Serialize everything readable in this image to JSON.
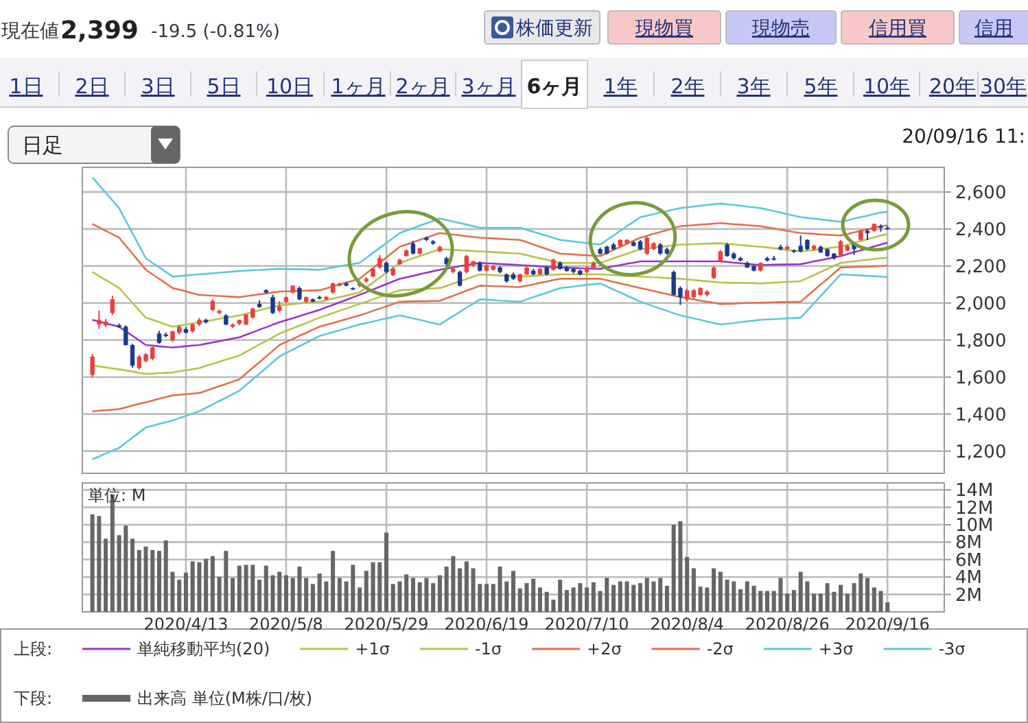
{
  "chart_data": [
    {
      "type": "other",
      "annotations": [
        "現在値",
        "2,399",
        "-19.5 (-0.81%)",
        "株価更新",
        "現物買",
        "現物売",
        "信用買",
        "信用",
        "1日",
        "2日",
        "3日",
        "5日",
        "10日",
        "1ヶ月",
        "2ヶ月",
        "3ヶ月",
        "6ヶ月",
        "1年",
        "2年",
        "3年",
        "5年",
        "10年",
        "20年",
        "30年",
        "日足",
        "20/09/16 11:"
      ]
    },
    {
      "type": "candlestick",
      "ylim": [
        1080,
        2733
      ],
      "tick_labels": "y",
      "grid": true,
      "legend": "bottom",
      "annotations": [
        "上段:"
      ],
      "yticks": [
        {
          "value": 1200,
          "label": "1,200"
        },
        {
          "value": 1400,
          "label": "1,400"
        },
        {
          "value": 1600,
          "label": "1,600"
        },
        {
          "value": 1800,
          "label": "1,800"
        },
        {
          "value": 2000,
          "label": "2,000"
        },
        {
          "value": 2200,
          "label": "2,200"
        },
        {
          "value": 2400,
          "label": "2,400"
        },
        {
          "value": 2600,
          "label": "2,600"
        }
      ],
      "categories": [
        null,
        null,
        null,
        null,
        null,
        null,
        null,
        null,
        null,
        null,
        null,
        null,
        null,
        null,
        "2020/4/13",
        null,
        null,
        null,
        null,
        null,
        null,
        null,
        null,
        null,
        null,
        null,
        null,
        null,
        null,
        "2020/5/8",
        null,
        null,
        null,
        null,
        null,
        null,
        null,
        null,
        null,
        null,
        null,
        null,
        null,
        null,
        "2020/5/29",
        null,
        null,
        null,
        null,
        null,
        null,
        null,
        null,
        null,
        null,
        null,
        null,
        null,
        null,
        "2020/6/19",
        null,
        null,
        null,
        null,
        null,
        null,
        null,
        null,
        null,
        null,
        null,
        null,
        null,
        null,
        "2020/7/10",
        null,
        null,
        null,
        null,
        null,
        null,
        null,
        null,
        null,
        null,
        null,
        null,
        null,
        null,
        "2020/8/4",
        null,
        null,
        null,
        null,
        null,
        null,
        null,
        null,
        null,
        null,
        null,
        null,
        null,
        null,
        "2020/8/26",
        null,
        null,
        null,
        null,
        null,
        null,
        null,
        null,
        null,
        null,
        null,
        null,
        null,
        null,
        "2020/9/16"
      ],
      "ohlc": [
        [
          1612,
          1725,
          1600,
          1711
        ],
        [
          1884,
          1960,
          1860,
          1909
        ],
        [
          1880,
          1915,
          1870,
          1900
        ],
        [
          1946,
          2040,
          1935,
          2020
        ],
        [
          1880,
          1890,
          1865,
          1870
        ],
        [
          1872,
          1880,
          1770,
          1773
        ],
        [
          1773,
          1780,
          1650,
          1662
        ],
        [
          1649,
          1720,
          1640,
          1711
        ],
        [
          1686,
          1730,
          1680,
          1723
        ],
        [
          1699,
          1765,
          1690,
          1760
        ],
        [
          1835,
          1850,
          1780,
          1785
        ],
        [
          1830,
          1840,
          1815,
          1822
        ],
        [
          1798,
          1850,
          1790,
          1847
        ],
        [
          1840,
          1880,
          1830,
          1872
        ],
        [
          1859,
          1870,
          1835,
          1840
        ],
        [
          1847,
          1890,
          1840,
          1884
        ],
        [
          1884,
          1920,
          1875,
          1909
        ],
        [
          1909,
          1915,
          1890,
          1896
        ],
        [
          1963,
          2020,
          1955,
          2012
        ],
        [
          1946,
          1965,
          1940,
          1958
        ],
        [
          1933,
          1940,
          1880,
          1884
        ],
        [
          1872,
          1890,
          1865,
          1884
        ],
        [
          1889,
          1910,
          1880,
          1909
        ],
        [
          1884,
          1940,
          1880,
          1938
        ],
        [
          1921,
          1975,
          1915,
          1970
        ],
        [
          1995,
          2015,
          1975,
          1978
        ],
        [
          2069,
          2075,
          2050,
          2057
        ],
        [
          2032,
          2045,
          1940,
          1946
        ],
        [
          1958,
          2010,
          1950,
          1983
        ],
        [
          2007,
          2035,
          2000,
          2032
        ],
        [
          2057,
          2095,
          2050,
          2094
        ],
        [
          2081,
          2090,
          2015,
          2020
        ],
        [
          2007,
          2035,
          2000,
          2032
        ],
        [
          2020,
          2025,
          2005,
          2007
        ],
        [
          2032,
          2040,
          2020,
          2025
        ],
        [
          2020,
          2040,
          2015,
          2032
        ],
        [
          2057,
          2110,
          2050,
          2106
        ],
        [
          2094,
          2110,
          2090,
          2106
        ],
        [
          2106,
          2115,
          2090,
          2094
        ],
        [
          2081,
          2085,
          2070,
          2076
        ],
        [
          2094,
          2110,
          2085,
          2106
        ],
        [
          2118,
          2140,
          2110,
          2131
        ],
        [
          2143,
          2190,
          2140,
          2185
        ],
        [
          2192,
          2260,
          2185,
          2242
        ],
        [
          2217,
          2225,
          2160,
          2168
        ],
        [
          2151,
          2195,
          2145,
          2185
        ],
        [
          2210,
          2240,
          2205,
          2234
        ],
        [
          2254,
          2290,
          2250,
          2284
        ],
        [
          2321,
          2335,
          2262,
          2267
        ],
        [
          2267,
          2300,
          2260,
          2296
        ],
        [
          2353,
          2360,
          2335,
          2341
        ],
        [
          2333,
          2340,
          2315,
          2321
        ],
        [
          2279,
          2310,
          2275,
          2304
        ],
        [
          2242,
          2250,
          2200,
          2210
        ],
        [
          2168,
          2190,
          2160,
          2185
        ],
        [
          2168,
          2175,
          2090,
          2094
        ],
        [
          2168,
          2260,
          2160,
          2254
        ],
        [
          2205,
          2230,
          2195,
          2225
        ],
        [
          2217,
          2225,
          2170,
          2175
        ],
        [
          2175,
          2210,
          2170,
          2205
        ],
        [
          2180,
          2205,
          2175,
          2200
        ],
        [
          2192,
          2200,
          2160,
          2168
        ],
        [
          2155,
          2160,
          2110,
          2118
        ],
        [
          2155,
          2165,
          2125,
          2131
        ],
        [
          2118,
          2160,
          2110,
          2155
        ],
        [
          2155,
          2200,
          2150,
          2192
        ],
        [
          2175,
          2185,
          2150,
          2155
        ],
        [
          2155,
          2190,
          2150,
          2185
        ],
        [
          2192,
          2200,
          2150,
          2155
        ],
        [
          2180,
          2240,
          2175,
          2234
        ],
        [
          2217,
          2225,
          2180,
          2185
        ],
        [
          2192,
          2200,
          2170,
          2173
        ],
        [
          2185,
          2190,
          2160,
          2168
        ],
        [
          2175,
          2180,
          2150,
          2155
        ],
        [
          2168,
          2200,
          2160,
          2192
        ],
        [
          2192,
          2225,
          2185,
          2217
        ],
        [
          2291,
          2300,
          2262,
          2267
        ],
        [
          2304,
          2310,
          2262,
          2267
        ],
        [
          2316,
          2325,
          2285,
          2291
        ],
        [
          2309,
          2345,
          2300,
          2341
        ],
        [
          2323,
          2345,
          2318,
          2341
        ],
        [
          2328,
          2335,
          2305,
          2309
        ],
        [
          2333,
          2340,
          2285,
          2291
        ],
        [
          2267,
          2360,
          2260,
          2353
        ],
        [
          2291,
          2330,
          2285,
          2323
        ],
        [
          2316,
          2325,
          2260,
          2267
        ],
        [
          2291,
          2300,
          2262,
          2267
        ],
        [
          2168,
          2175,
          2040,
          2044
        ],
        [
          2081,
          2090,
          1990,
          2032
        ],
        [
          2020,
          2075,
          2010,
          2069
        ],
        [
          2032,
          2075,
          2025,
          2069
        ],
        [
          2044,
          2085,
          2040,
          2081
        ],
        [
          2044,
          2070,
          2035,
          2062
        ],
        [
          2136,
          2200,
          2130,
          2192
        ],
        [
          2225,
          2285,
          2220,
          2279
        ],
        [
          2316,
          2325,
          2250,
          2254
        ],
        [
          2267,
          2275,
          2235,
          2242
        ],
        [
          2242,
          2250,
          2225,
          2230
        ],
        [
          2217,
          2225,
          2190,
          2192
        ],
        [
          2200,
          2205,
          2170,
          2175
        ],
        [
          2175,
          2220,
          2170,
          2217
        ],
        [
          2242,
          2250,
          2225,
          2230
        ],
        [
          2242,
          2255,
          2230,
          2234
        ],
        [
          2304,
          2315,
          2285,
          2291
        ],
        [
          2291,
          2310,
          2285,
          2304
        ],
        [
          2284,
          2290,
          2270,
          2279
        ],
        [
          2309,
          2365,
          2275,
          2279
        ],
        [
          2341,
          2345,
          2285,
          2291
        ],
        [
          2291,
          2315,
          2285,
          2309
        ],
        [
          2304,
          2310,
          2270,
          2274
        ],
        [
          2291,
          2295,
          2250,
          2254
        ],
        [
          2267,
          2270,
          2235,
          2242
        ],
        [
          2259,
          2340,
          2250,
          2333
        ],
        [
          2284,
          2315,
          2280,
          2309
        ],
        [
          2323,
          2330,
          2260,
          2291
        ],
        [
          2341,
          2395,
          2335,
          2390
        ],
        [
          2390,
          2400,
          2340,
          2378
        ],
        [
          2390,
          2430,
          2385,
          2427
        ],
        [
          2415,
          2425,
          2385,
          2407
        ],
        [
          2407,
          2415,
          2395,
          2399
        ]
      ],
      "colors": [
        "#e8413c",
        "#e8413c",
        "#e8413c",
        "#e8413c",
        "#1c3a8c",
        "#1c3a8c",
        "#1c3a8c",
        "#e8413c",
        "#e8413c",
        "#e8413c",
        "#1c3a8c",
        "#1c3a8c",
        "#e8413c",
        "#e8413c",
        "#1c3a8c",
        "#e8413c",
        "#e8413c",
        "#1c3a8c",
        "#e8413c",
        "#e8413c",
        "#1c3a8c",
        "#e8413c",
        "#e8413c",
        "#e8413c",
        "#e8413c",
        "#1c3a8c",
        "#1c3a8c",
        "#1c3a8c",
        "#e8413c",
        "#e8413c",
        "#e8413c",
        "#1c3a8c",
        "#e8413c",
        "#1c3a8c",
        "#1c3a8c",
        "#e8413c",
        "#e8413c",
        "#e8413c",
        "#1c3a8c",
        "#1c3a8c",
        "#e8413c",
        "#e8413c",
        "#e8413c",
        "#e8413c",
        "#1c3a8c",
        "#e8413c",
        "#e8413c",
        "#e8413c",
        "#1c3a8c",
        "#e8413c",
        "#1c3a8c",
        "#1c3a8c",
        "#e8413c",
        "#1c3a8c",
        "#e8413c",
        "#1c3a8c",
        "#e8413c",
        "#e8413c",
        "#1c3a8c",
        "#e8413c",
        "#e8413c",
        "#1c3a8c",
        "#1c3a8c",
        "#1c3a8c",
        "#e8413c",
        "#e8413c",
        "#1c3a8c",
        "#e8413c",
        "#1c3a8c",
        "#e8413c",
        "#1c3a8c",
        "#1c3a8c",
        "#1c3a8c",
        "#1c3a8c",
        "#e8413c",
        "#e8413c",
        "#1c3a8c",
        "#1c3a8c",
        "#1c3a8c",
        "#e8413c",
        "#e8413c",
        "#1c3a8c",
        "#1c3a8c",
        "#e8413c",
        "#e8413c",
        "#1c3a8c",
        "#1c3a8c",
        "#1c3a8c",
        "#1c3a8c",
        "#e8413c",
        "#e8413c",
        "#e8413c",
        "#e8413c",
        "#e8413c",
        "#e8413c",
        "#1c3a8c",
        "#1c3a8c",
        "#1c3a8c",
        "#1c3a8c",
        "#1c3a8c",
        "#e8413c",
        "#1c3a8c",
        "#1c3a8c",
        "#1c3a8c",
        "#e8413c",
        "#1c3a8c",
        "#1c3a8c",
        "#1c3a8c",
        "#e8413c",
        "#1c3a8c",
        "#1c3a8c",
        "#1c3a8c",
        "#e8413c",
        "#e8413c",
        "#1c3a8c",
        "#e8413c",
        "#1c3a8c",
        "#e8413c",
        "#1c3a8c",
        "#1c3a8c"
      ],
      "series": [
        {
          "type": "line",
          "name": "単純移動平均(20)",
          "color": "#9a35c8",
          "values": [
            1909,
            1900,
            1890,
            1881,
            1872,
            1847,
            1823,
            1798,
            1773,
            1770,
            1766,
            1763,
            1760,
            1763,
            1767,
            1770,
            1773,
            1780,
            1787,
            1794,
            1801,
            1808,
            1815,
            1829,
            1842,
            1856,
            1869,
            1883,
            1896,
            1907,
            1918,
            1930,
            1941,
            1952,
            1963,
            1977,
            1990,
            2004,
            2017,
            2031,
            2044,
            2059,
            2073,
            2088,
            2102,
            2117,
            2131,
            2139,
            2147,
            2156,
            2164,
            2172,
            2180,
            2186,
            2192,
            2199,
            2205,
            2211,
            2217,
            2215,
            2213,
            2211,
            2209,
            2207,
            2205,
            2203,
            2201,
            2198,
            2196,
            2194,
            2192,
            2191,
            2190,
            2188,
            2187,
            2186,
            2185,
            2192,
            2198,
            2205,
            2212,
            2218,
            2225,
            2225,
            2225,
            2225,
            2225,
            2225,
            2225,
            2225,
            2225,
            2225,
            2225,
            2225,
            2225,
            2222,
            2218,
            2215,
            2212,
            2208,
            2205,
            2206,
            2207,
            2208,
            2208,
            2209,
            2210,
            2217,
            2225,
            2232,
            2239,
            2247,
            2254,
            2264,
            2275,
            2285,
            2295,
            2306,
            2316,
            2326
          ]
        },
        {
          "type": "line",
          "name": "+1σ",
          "color": "#b8c24a",
          "values": [
            2168,
            2146,
            2125,
            2103,
            2081,
            2041,
            2001,
            1961,
            1921,
            1909,
            1897,
            1884,
            1872,
            1878,
            1884,
            1890,
            1896,
            1902,
            1908,
            1915,
            1921,
            1927,
            1933,
            1942,
            1951,
            1961,
            1970,
            1979,
            1988,
            1991,
            1994,
            1998,
            2001,
            2004,
            2007,
            2015,
            2024,
            2032,
            2040,
            2049,
            2057,
            2084,
            2110,
            2137,
            2164,
            2190,
            2217,
            2229,
            2242,
            2254,
            2266,
            2279,
            2291,
            2289,
            2287,
            2285,
            2283,
            2281,
            2279,
            2277,
            2275,
            2273,
            2271,
            2269,
            2267,
            2259,
            2250,
            2242,
            2234,
            2225,
            2217,
            2217,
            2217,
            2217,
            2217,
            2217,
            2217,
            2229,
            2242,
            2254,
            2266,
            2279,
            2291,
            2295,
            2299,
            2304,
            2308,
            2312,
            2316,
            2317,
            2318,
            2320,
            2321,
            2322,
            2323,
            2320,
            2317,
            2313,
            2310,
            2307,
            2304,
            2300,
            2296,
            2292,
            2287,
            2283,
            2279,
            2283,
            2287,
            2292,
            2296,
            2300,
            2304,
            2314,
            2324,
            2335,
            2345,
            2355,
            2365,
            2372
          ]
        },
        {
          "type": "line",
          "name": "-1σ",
          "color": "#b8c24a",
          "values": [
            1662,
            1657,
            1652,
            1647,
            1642,
            1636,
            1630,
            1623,
            1617,
            1619,
            1621,
            1623,
            1625,
            1631,
            1637,
            1643,
            1649,
            1660,
            1671,
            1683,
            1694,
            1705,
            1716,
            1736,
            1756,
            1776,
            1795,
            1815,
            1835,
            1849,
            1864,
            1878,
            1892,
            1907,
            1921,
            1933,
            1946,
            1958,
            1970,
            1983,
            1995,
            2007,
            2020,
            2032,
            2044,
            2057,
            2069,
            2071,
            2073,
            2075,
            2077,
            2079,
            2081,
            2093,
            2106,
            2118,
            2130,
            2143,
            2155,
            2153,
            2151,
            2149,
            2147,
            2145,
            2143,
            2145,
            2147,
            2149,
            2151,
            2153,
            2155,
            2155,
            2155,
            2155,
            2155,
            2155,
            2155,
            2153,
            2151,
            2149,
            2147,
            2145,
            2143,
            2141,
            2139,
            2137,
            2135,
            2133,
            2131,
            2128,
            2124,
            2121,
            2118,
            2114,
            2111,
            2110,
            2109,
            2109,
            2108,
            2107,
            2106,
            2108,
            2110,
            2112,
            2114,
            2116,
            2118,
            2135,
            2151,
            2168,
            2184,
            2201,
            2217,
            2221,
            2225,
            2230,
            2234,
            2238,
            2242,
            2244
          ]
        },
        {
          "type": "line",
          "name": "+2σ",
          "color": "#e07050",
          "values": [
            2427,
            2409,
            2390,
            2372,
            2353,
            2310,
            2267,
            2223,
            2180,
            2155,
            2131,
            2106,
            2081,
            2072,
            2063,
            2053,
            2044,
            2042,
            2040,
            2038,
            2036,
            2034,
            2032,
            2037,
            2042,
            2047,
            2052,
            2057,
            2062,
            2063,
            2064,
            2066,
            2067,
            2068,
            2069,
            2079,
            2090,
            2100,
            2110,
            2121,
            2131,
            2160,
            2189,
            2218,
            2246,
            2275,
            2304,
            2316,
            2329,
            2341,
            2353,
            2366,
            2378,
            2374,
            2370,
            2366,
            2361,
            2357,
            2353,
            2351,
            2349,
            2347,
            2345,
            2343,
            2341,
            2329,
            2316,
            2304,
            2292,
            2279,
            2267,
            2265,
            2263,
            2260,
            2258,
            2256,
            2254,
            2271,
            2287,
            2304,
            2320,
            2337,
            2353,
            2363,
            2374,
            2384,
            2394,
            2405,
            2415,
            2418,
            2421,
            2424,
            2426,
            2429,
            2432,
            2429,
            2426,
            2424,
            2421,
            2418,
            2415,
            2409,
            2403,
            2396,
            2390,
            2384,
            2378,
            2376,
            2374,
            2371,
            2369,
            2367,
            2365,
            2373,
            2382,
            2390,
            2398,
            2407,
            2415,
            2420
          ]
        },
        {
          "type": "line",
          "name": "-2σ",
          "color": "#e07050",
          "values": [
            1415,
            1418,
            1421,
            1424,
            1427,
            1436,
            1446,
            1455,
            1464,
            1473,
            1483,
            1492,
            1501,
            1504,
            1508,
            1511,
            1514,
            1526,
            1539,
            1551,
            1563,
            1576,
            1588,
            1619,
            1650,
            1680,
            1711,
            1742,
            1773,
            1790,
            1806,
            1823,
            1839,
            1856,
            1872,
            1882,
            1892,
            1903,
            1913,
            1923,
            1933,
            1945,
            1958,
            1970,
            1982,
            1995,
            2007,
            2008,
            2009,
            2010,
            2010,
            2011,
            2012,
            2026,
            2039,
            2053,
            2067,
            2080,
            2094,
            2093,
            2091,
            2090,
            2089,
            2087,
            2086,
            2094,
            2101,
            2109,
            2116,
            2124,
            2131,
            2131,
            2131,
            2131,
            2131,
            2131,
            2131,
            2123,
            2114,
            2106,
            2098,
            2089,
            2081,
            2073,
            2065,
            2057,
            2048,
            2040,
            2032,
            2026,
            2020,
            2013,
            2007,
            2001,
            1995,
            1996,
            1997,
            1999,
            2000,
            2001,
            2002,
            2003,
            2004,
            2005,
            2005,
            2006,
            2007,
            2038,
            2069,
            2100,
            2130,
            2161,
            2192,
            2193,
            2195,
            2196,
            2197,
            2199,
            2200,
            2202
          ]
        },
        {
          "type": "line",
          "name": "+3σ",
          "color": "#5cc8d8",
          "values": [
            2679,
            2638,
            2596,
            2555,
            2513,
            2445,
            2378,
            2310,
            2242,
            2217,
            2193,
            2168,
            2143,
            2146,
            2149,
            2152,
            2155,
            2158,
            2161,
            2164,
            2167,
            2170,
            2173,
            2175,
            2177,
            2179,
            2181,
            2183,
            2185,
            2184,
            2183,
            2183,
            2182,
            2181,
            2180,
            2186,
            2192,
            2199,
            2205,
            2211,
            2217,
            2244,
            2271,
            2298,
            2324,
            2351,
            2378,
            2391,
            2404,
            2418,
            2431,
            2444,
            2457,
            2449,
            2440,
            2432,
            2424,
            2415,
            2407,
            2407,
            2407,
            2407,
            2407,
            2407,
            2407,
            2396,
            2385,
            2374,
            2363,
            2352,
            2341,
            2337,
            2333,
            2328,
            2324,
            2320,
            2316,
            2341,
            2365,
            2390,
            2415,
            2439,
            2464,
            2472,
            2480,
            2489,
            2497,
            2505,
            2513,
            2517,
            2521,
            2526,
            2530,
            2534,
            2538,
            2534,
            2530,
            2526,
            2521,
            2517,
            2513,
            2505,
            2497,
            2489,
            2480,
            2472,
            2464,
            2460,
            2456,
            2452,
            2447,
            2443,
            2439,
            2447,
            2456,
            2464,
            2472,
            2481,
            2489,
            2492
          ]
        },
        {
          "type": "line",
          "name": "-3σ",
          "color": "#5cc8d8",
          "values": [
            1156,
            1171,
            1187,
            1202,
            1217,
            1245,
            1273,
            1300,
            1328,
            1337,
            1347,
            1356,
            1365,
            1378,
            1390,
            1403,
            1415,
            1434,
            1452,
            1471,
            1489,
            1508,
            1526,
            1557,
            1588,
            1618,
            1649,
            1680,
            1711,
            1730,
            1748,
            1767,
            1785,
            1804,
            1822,
            1832,
            1843,
            1853,
            1863,
            1874,
            1884,
            1892,
            1900,
            1909,
            1917,
            1925,
            1933,
            1925,
            1917,
            1909,
            1900,
            1892,
            1884,
            1907,
            1929,
            1952,
            1975,
            1997,
            2020,
            2018,
            2016,
            2013,
            2011,
            2009,
            2007,
            2019,
            2032,
            2044,
            2056,
            2069,
            2081,
            2085,
            2089,
            2094,
            2098,
            2102,
            2106,
            2090,
            2073,
            2057,
            2040,
            2024,
            2007,
            1995,
            1982,
            1970,
            1958,
            1945,
            1933,
            1925,
            1917,
            1909,
            1900,
            1892,
            1884,
            1888,
            1892,
            1897,
            1901,
            1905,
            1909,
            1911,
            1913,
            1915,
            1917,
            1919,
            1921,
            1960,
            1999,
            2038,
            2077,
            2116,
            2155,
            2153,
            2151,
            2149,
            2147,
            2145,
            2143,
            2140
          ]
        }
      ]
    },
    {
      "type": "bar",
      "ylim": [
        0,
        14.8
      ],
      "grid": true,
      "legend": "bottom",
      "annotations": [
        "下段:",
        "単位: M"
      ],
      "yticks": [
        {
          "value": 2,
          "label": "2M"
        },
        {
          "value": 4,
          "label": "4M"
        },
        {
          "value": 6,
          "label": "6M"
        },
        {
          "value": 8,
          "label": "8M"
        },
        {
          "value": 10,
          "label": "10M"
        },
        {
          "value": 12,
          "label": "12M"
        },
        {
          "value": 14,
          "label": "14M"
        }
      ],
      "categories": [
        null,
        null,
        null,
        null,
        null,
        null,
        null,
        null,
        null,
        null,
        null,
        null,
        null,
        null,
        "2020/4/13",
        null,
        null,
        null,
        null,
        null,
        null,
        null,
        null,
        null,
        null,
        null,
        null,
        null,
        null,
        "2020/5/8",
        null,
        null,
        null,
        null,
        null,
        null,
        null,
        null,
        null,
        null,
        null,
        null,
        null,
        null,
        "2020/5/29",
        null,
        null,
        null,
        null,
        null,
        null,
        null,
        null,
        null,
        null,
        null,
        null,
        null,
        null,
        "2020/6/19",
        null,
        null,
        null,
        null,
        null,
        null,
        null,
        null,
        null,
        null,
        null,
        null,
        null,
        null,
        "2020/7/10",
        null,
        null,
        null,
        null,
        null,
        null,
        null,
        null,
        null,
        null,
        null,
        null,
        null,
        null,
        "2020/8/4",
        null,
        null,
        null,
        null,
        null,
        null,
        null,
        null,
        null,
        null,
        null,
        null,
        null,
        null,
        "2020/8/26",
        null,
        null,
        null,
        null,
        null,
        null,
        null,
        null,
        null,
        null,
        null,
        null,
        null,
        null,
        "2020/9/16"
      ],
      "series": [
        {
          "name": "出来高 単位(M株/口/枚)",
          "color": "#666666",
          "values": [
            11.2,
            11.0,
            8.4,
            13.5,
            8.8,
            9.9,
            8.4,
            7.1,
            7.5,
            7.1,
            7.0,
            8.2,
            4.6,
            3.7,
            4.5,
            5.8,
            5.7,
            6.1,
            6.4,
            4.0,
            7.0,
            3.9,
            5.3,
            5.4,
            5.4,
            3.7,
            5.3,
            4.2,
            4.6,
            4.2,
            3.9,
            5.2,
            3.9,
            3.2,
            4.4,
            3.5,
            7.0,
            3.9,
            3.5,
            5.4,
            2.8,
            4.7,
            5.7,
            5.7,
            9.1,
            3.2,
            3.5,
            4.3,
            3.9,
            3.4,
            3.9,
            3.3,
            4.2,
            5.2,
            6.4,
            5.0,
            5.8,
            5.0,
            3.2,
            3.2,
            3.2,
            5.2,
            3.5,
            4.7,
            2.7,
            3.3,
            3.8,
            2.8,
            2.3,
            1.4,
            3.7,
            2.5,
            2.8,
            3.3,
            2.8,
            3.4,
            2.4,
            3.9,
            3.1,
            3.5,
            3.5,
            3.1,
            3.3,
            3.9,
            3.5,
            3.9,
            3.0,
            10.0,
            10.4,
            6.3,
            5.0,
            2.9,
            2.8,
            5.0,
            4.6,
            3.7,
            3.5,
            2.6,
            3.5,
            3.0,
            2.4,
            2.4,
            2.4,
            3.9,
            2.1,
            2.5,
            4.6,
            3.5,
            2.1,
            2.1,
            3.3,
            2.3,
            3.1,
            2.1,
            3.3,
            4.4,
            3.9,
            2.8,
            2.4,
            1.1
          ]
        }
      ]
    }
  ]
}
